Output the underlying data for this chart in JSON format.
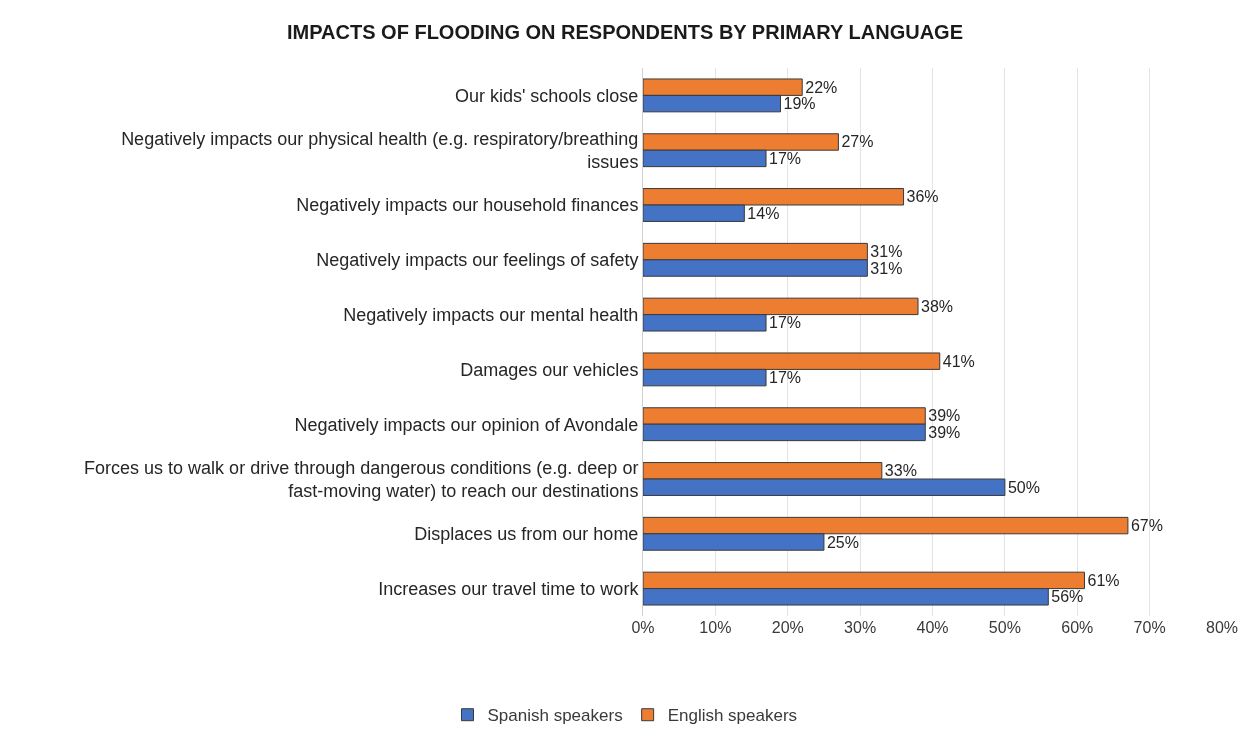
{
  "chart_data": {
    "type": "bar",
    "orientation": "horizontal",
    "title": "IMPACTS OF FLOODING ON RESPONDENTS BY PRIMARY LANGUAGE",
    "categories": [
      "Our kids' schools close",
      "Negatively impacts our physical health (e.g. respiratory/breathing issues",
      "Negatively impacts our household finances",
      "Negatively impacts our feelings of safety",
      "Negatively impacts our mental health",
      "Damages our vehicles",
      "Negatively impacts our opinion of Avondale",
      "Forces us to walk or drive through dangerous conditions (e.g. deep or fast-moving water) to reach our destinations",
      "Displaces us from our home",
      "Increases our travel time to work"
    ],
    "series": [
      {
        "name": "Spanish speakers",
        "color": "#4472c4",
        "values": [
          19,
          17,
          14,
          31,
          17,
          17,
          39,
          50,
          25,
          56
        ],
        "value_labels": [
          "19%",
          "17%",
          "14%",
          "31%",
          "17%",
          "17%",
          "39%",
          "50%",
          "25%",
          "56%"
        ]
      },
      {
        "name": "English speakers",
        "color": "#ed7d31",
        "values": [
          22,
          27,
          36,
          31,
          38,
          41,
          39,
          33,
          67,
          61
        ],
        "value_labels": [
          "22%",
          "27%",
          "36%",
          "31%",
          "38%",
          "41%",
          "39%",
          "33%",
          "67%",
          "61%"
        ]
      }
    ],
    "xlim": [
      0,
      80
    ],
    "xticks": [
      {
        "value": 0,
        "label": "0%"
      },
      {
        "value": 10,
        "label": "10%"
      },
      {
        "value": 20,
        "label": "20%"
      },
      {
        "value": 30,
        "label": "30%"
      },
      {
        "value": 40,
        "label": "40%"
      },
      {
        "value": 50,
        "label": "50%"
      },
      {
        "value": 60,
        "label": "60%"
      },
      {
        "value": 70,
        "label": "70%"
      },
      {
        "value": 80,
        "label": "80%"
      }
    ],
    "grid": "x",
    "legend": "bottom"
  }
}
